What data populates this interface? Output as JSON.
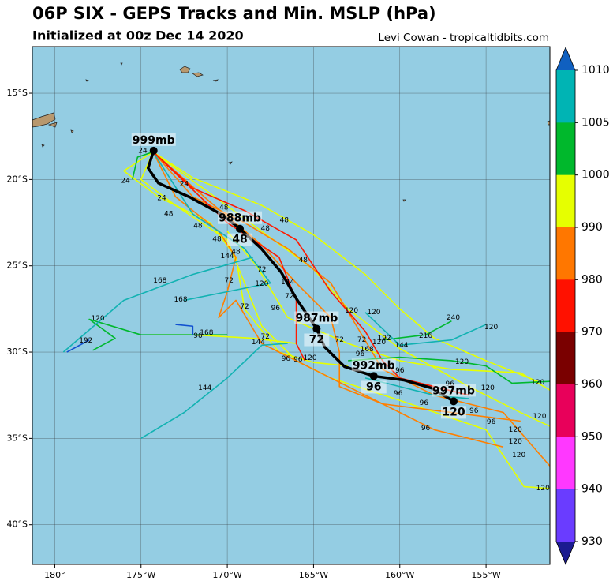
{
  "title": "06P SIX - GEPS Tracks and Min. MSLP (hPa)",
  "subtitle": "Initialized at 00z Dec 14 2020",
  "credit": "Levi Cowan - tropicaltidbits.com",
  "map": {
    "xlim": [
      -181.3,
      -151.3
    ],
    "ylim": [
      -42.3,
      -12.3
    ],
    "xticks": [
      {
        "value": -180,
        "label": "180°"
      },
      {
        "value": -175,
        "label": "175°W"
      },
      {
        "value": -170,
        "label": "170°W"
      },
      {
        "value": -165,
        "label": "165°W"
      },
      {
        "value": -160,
        "label": "160°W"
      },
      {
        "value": -155,
        "label": "155°W"
      }
    ],
    "yticks": [
      {
        "value": -15,
        "label": "15°S"
      },
      {
        "value": -20,
        "label": "20°S"
      },
      {
        "value": -25,
        "label": "25°S"
      },
      {
        "value": -30,
        "label": "30°S"
      },
      {
        "value": -35,
        "label": "35°S"
      },
      {
        "value": -40,
        "label": "40°S"
      }
    ],
    "grid": true,
    "ocean_color": "#94cde3",
    "tracks": [
      {
        "color": "#e6ff00",
        "lon": [
          -174.3,
          -172,
          -168,
          -165,
          -162,
          -160,
          -158,
          -155,
          -152
        ],
        "lat": [
          -18.4,
          -19.9,
          -21.5,
          -23.2,
          -25.5,
          -27.5,
          -29.2,
          -30.5,
          -31.7
        ]
      },
      {
        "color": "#e6ff00",
        "lon": [
          -174.3,
          -171,
          -168,
          -165,
          -163,
          -160,
          -156,
          -153,
          -151.3
        ],
        "lat": [
          -18.4,
          -20.8,
          -23,
          -25.2,
          -27.5,
          -29.8,
          -32,
          -33.5,
          -34.3
        ]
      },
      {
        "color": "#e6ff00",
        "lon": [
          -174.3,
          -175,
          -173,
          -170,
          -169,
          -168,
          -166,
          -164,
          -160,
          -155,
          -152.8,
          -151.3
        ],
        "lat": [
          -18.4,
          -20,
          -21.5,
          -23.5,
          -26,
          -28.5,
          -30.5,
          -31.5,
          -32.8,
          -34.5,
          -37.8,
          -37.9
        ]
      },
      {
        "color": "#e6ff00",
        "lon": [
          -174.3,
          -176,
          -174,
          -171,
          -169.5,
          -169,
          -167,
          -165,
          -163
        ],
        "lat": [
          -18.4,
          -19.5,
          -21,
          -22.5,
          -24.5,
          -27.5,
          -30,
          -30.6,
          -30.8
        ]
      },
      {
        "color": "#e6ff00",
        "lon": [
          -170,
          -168.3,
          -166.5,
          -163,
          -160,
          -157,
          -153,
          -151.3
        ],
        "lat": [
          -23,
          -25,
          -28,
          -29.5,
          -30.5,
          -31,
          -31.2,
          -32.2
        ]
      },
      {
        "color": "#e6ff00",
        "lon": [
          -174.5,
          -172,
          -168.5,
          -166
        ],
        "lat": [
          -29,
          -29,
          -29.2,
          -29.5
        ]
      },
      {
        "color": "#ff7f00",
        "lon": [
          -174.3,
          -172,
          -169,
          -166.5,
          -164,
          -162.5,
          -161,
          -158,
          -154,
          -151.3
        ],
        "lat": [
          -18.4,
          -21,
          -22.5,
          -24,
          -26,
          -28.5,
          -31,
          -32.5,
          -33.5,
          -36.6
        ]
      },
      {
        "color": "#ff7f00",
        "lon": [
          -174.3,
          -173,
          -170.5,
          -169.5,
          -170,
          -170.5,
          -169.5,
          -168,
          -165,
          -161,
          -157,
          -153
        ],
        "lat": [
          -18.4,
          -21,
          -23,
          -24.5,
          -26.5,
          -28,
          -27,
          -29.5,
          -31,
          -33,
          -33.5,
          -34
        ]
      },
      {
        "color": "#ff7f00",
        "lon": [
          -174.3,
          -171,
          -168,
          -166,
          -164,
          -163.5,
          -163.5,
          -161,
          -158,
          -154
        ],
        "lat": [
          -18.4,
          -21.3,
          -23.8,
          -26,
          -28,
          -30,
          -32,
          -33,
          -34.5,
          -35.5
        ]
      },
      {
        "color": "#ff1a00",
        "lon": [
          -174.3,
          -172,
          -169,
          -166,
          -164,
          -162,
          -161,
          -160,
          -156
        ],
        "lat": [
          -18.4,
          -20.5,
          -21.8,
          -23.5,
          -26.5,
          -28.8,
          -30.5,
          -31.5,
          -32.5
        ]
      },
      {
        "color": "#ff1a00",
        "lon": [
          -174.3,
          -170,
          -167,
          -166,
          -166,
          -165.5
        ],
        "lat": [
          -18.4,
          -22.5,
          -24.5,
          -27,
          -29.5,
          -30.5
        ]
      },
      {
        "color": "#00b82e",
        "lon": [
          -177.8,
          -176.5,
          -178,
          -175,
          -173,
          -170
        ],
        "lat": [
          -29.9,
          -29.2,
          -28.1,
          -29,
          -29,
          -29
        ]
      },
      {
        "color": "#00b82e",
        "lon": [
          -174.3,
          -175.2,
          -175.5
        ],
        "lat": [
          -18.4,
          -18.7,
          -20
        ]
      },
      {
        "color": "#00b82e",
        "lon": [
          -163,
          -160,
          -157,
          -155,
          -153.5,
          -151.3
        ],
        "lat": [
          -30.5,
          -30.3,
          -30.5,
          -30.8,
          -31.8,
          -31.7
        ]
      },
      {
        "color": "#00b82e",
        "lon": [
          -161,
          -158.5,
          -157
        ],
        "lat": [
          -29.3,
          -29,
          -28.2
        ]
      },
      {
        "color": "#12b2b2",
        "lon": [
          -174.3,
          -172,
          -169,
          -167.5,
          -170,
          -172.5
        ],
        "lat": [
          -18.4,
          -22,
          -24,
          -26,
          -26.5,
          -27
        ]
      },
      {
        "color": "#12b2b2",
        "lon": [
          -168.5,
          -172,
          -176,
          -179.5
        ],
        "lat": [
          -24.5,
          -25.5,
          -27,
          -30
        ]
      },
      {
        "color": "#12b2b2",
        "lon": [
          -166.5,
          -168,
          -170,
          -172.5,
          -175
        ],
        "lat": [
          -29.5,
          -29.6,
          -31.5,
          -33.5,
          -35
        ]
      },
      {
        "color": "#12b2b2",
        "lon": [
          -162,
          -160,
          -157,
          -155
        ],
        "lat": [
          -27.7,
          -29.6,
          -29.3,
          -28.4
        ]
      },
      {
        "color": "#12b2b2",
        "lon": [
          -162,
          -158,
          -156
        ],
        "lat": [
          -31.5,
          -32.5,
          -32.7
        ]
      },
      {
        "color": "#1050d0",
        "lon": [
          -179.3,
          -178
        ],
        "lat": [
          -30,
          -29.3
        ]
      },
      {
        "color": "#1050d0",
        "lon": [
          -173,
          -172,
          -172
        ],
        "lat": [
          -28.4,
          -28.5,
          -29
        ]
      }
    ],
    "hour_labels": [
      {
        "lon": -174.9,
        "lat": -18.33,
        "text": "24"
      },
      {
        "lon": -175.9,
        "lat": -20.07,
        "text": "24"
      },
      {
        "lon": -172.5,
        "lat": -20.25,
        "text": "24"
      },
      {
        "lon": -173.8,
        "lat": -21.07,
        "text": "24"
      },
      {
        "lon": -173.4,
        "lat": -21.99,
        "text": "48"
      },
      {
        "lon": -171.7,
        "lat": -22.67,
        "text": "48"
      },
      {
        "lon": -170.6,
        "lat": -23.45,
        "text": "48"
      },
      {
        "lon": -170.2,
        "lat": -21.62,
        "text": "48"
      },
      {
        "lon": -166.7,
        "lat": -22.35,
        "text": "48"
      },
      {
        "lon": -167.8,
        "lat": -22.85,
        "text": "48"
      },
      {
        "lon": -165.6,
        "lat": -24.68,
        "text": "48"
      },
      {
        "lon": -169.5,
        "lat": -24.18,
        "text": "48"
      },
      {
        "lon": -169.9,
        "lat": -25.87,
        "text": "72"
      },
      {
        "lon": -168.0,
        "lat": -25.23,
        "text": "72"
      },
      {
        "lon": -169.0,
        "lat": -27.37,
        "text": "72"
      },
      {
        "lon": -166.4,
        "lat": -26.78,
        "text": "72"
      },
      {
        "lon": -167.8,
        "lat": -29.11,
        "text": "72"
      },
      {
        "lon": -163.5,
        "lat": -29.29,
        "text": "72"
      },
      {
        "lon": -162.2,
        "lat": -29.29,
        "text": "72"
      },
      {
        "lon": -167.2,
        "lat": -27.47,
        "text": "96"
      },
      {
        "lon": -171.7,
        "lat": -29.06,
        "text": "96"
      },
      {
        "lon": -166.6,
        "lat": -30.39,
        "text": "96"
      },
      {
        "lon": -165.9,
        "lat": -30.43,
        "text": "96"
      },
      {
        "lon": -162.3,
        "lat": -30.11,
        "text": "96"
      },
      {
        "lon": -160.0,
        "lat": -31.07,
        "text": "96"
      },
      {
        "lon": -157.1,
        "lat": -31.85,
        "text": "96"
      },
      {
        "lon": -160.1,
        "lat": -32.4,
        "text": "96"
      },
      {
        "lon": -158.6,
        "lat": -32.95,
        "text": "96"
      },
      {
        "lon": -155.7,
        "lat": -33.4,
        "text": "96"
      },
      {
        "lon": -154.7,
        "lat": -34.04,
        "text": "96"
      },
      {
        "lon": -158.5,
        "lat": -34.41,
        "text": "96"
      },
      {
        "lon": -177.5,
        "lat": -28.06,
        "text": "120"
      },
      {
        "lon": -168.0,
        "lat": -26.05,
        "text": "120"
      },
      {
        "lon": -165.2,
        "lat": -30.34,
        "text": "120"
      },
      {
        "lon": -162.8,
        "lat": -27.6,
        "text": "120"
      },
      {
        "lon": -161.5,
        "lat": -27.69,
        "text": "120"
      },
      {
        "lon": -161.2,
        "lat": -29.43,
        "text": "120"
      },
      {
        "lon": -156.4,
        "lat": -30.57,
        "text": "120"
      },
      {
        "lon": -154.9,
        "lat": -32.08,
        "text": "120"
      },
      {
        "lon": -154.7,
        "lat": -28.56,
        "text": "120"
      },
      {
        "lon": -152.0,
        "lat": -31.76,
        "text": "120"
      },
      {
        "lon": -151.9,
        "lat": -33.72,
        "text": "120"
      },
      {
        "lon": -153.3,
        "lat": -34.5,
        "text": "120"
      },
      {
        "lon": -153.3,
        "lat": -35.18,
        "text": "120"
      },
      {
        "lon": -153.1,
        "lat": -35.96,
        "text": "120"
      },
      {
        "lon": -151.7,
        "lat": -37.88,
        "text": "120"
      },
      {
        "lon": -170.0,
        "lat": -24.45,
        "text": "144"
      },
      {
        "lon": -166.5,
        "lat": -25.96,
        "text": "144"
      },
      {
        "lon": -168.2,
        "lat": -29.43,
        "text": "144"
      },
      {
        "lon": -159.9,
        "lat": -29.61,
        "text": "144"
      },
      {
        "lon": -171.3,
        "lat": -32.08,
        "text": "144"
      },
      {
        "lon": -173.9,
        "lat": -25.87,
        "text": "168"
      },
      {
        "lon": -172.7,
        "lat": -26.96,
        "text": "168"
      },
      {
        "lon": -171.2,
        "lat": -28.88,
        "text": "168"
      },
      {
        "lon": -161.9,
        "lat": -29.84,
        "text": "168"
      },
      {
        "lon": -178.2,
        "lat": -29.34,
        "text": "192"
      },
      {
        "lon": -160.9,
        "lat": -29.2,
        "text": "192"
      },
      {
        "lon": -158.5,
        "lat": -29.06,
        "text": "216"
      },
      {
        "lon": -156.9,
        "lat": -28.01,
        "text": "240"
      }
    ],
    "mean_track": {
      "color": "#000000",
      "lon": [
        -174.27,
        -174.59,
        -173.99,
        -172.16,
        -170.32,
        -169.27,
        -168.03,
        -166.88,
        -165.96,
        -164.82,
        -164.36,
        -163.21,
        -161.51,
        -159.77,
        -158.17,
        -156.88
      ],
      "lat": [
        -18.33,
        -19.34,
        -20.21,
        -21.03,
        -22.03,
        -22.85,
        -24.0,
        -25.37,
        -26.96,
        -28.65,
        -29.7,
        -30.84,
        -31.39,
        -31.62,
        -32.08,
        -32.85
      ],
      "points": [
        {
          "lon": -174.27,
          "lat": -18.33,
          "pressure": "999mb"
        },
        {
          "lon": -169.27,
          "lat": -22.85,
          "pressure": "988mb",
          "hour": "48"
        },
        {
          "lon": -164.82,
          "lat": -28.65,
          "pressure": "987mb",
          "hour": "72"
        },
        {
          "lon": -161.51,
          "lat": -31.39,
          "pressure": "992mb",
          "hour": "96"
        },
        {
          "lon": -156.88,
          "lat": -32.85,
          "pressure": "997mb",
          "hour": "120"
        }
      ]
    }
  },
  "colorbar": {
    "ticks": [
      1010,
      1005,
      1000,
      990,
      980,
      970,
      960,
      950,
      940,
      930
    ],
    "colors": [
      "#00b4b4",
      "#00b82c",
      "#e6ff00",
      "#ff7700",
      "#ff1100",
      "#7a0000",
      "#e8005a",
      "#ff38ff",
      "#6a3cff"
    ],
    "over": "#1060c0",
    "under": "#1b1b90"
  }
}
